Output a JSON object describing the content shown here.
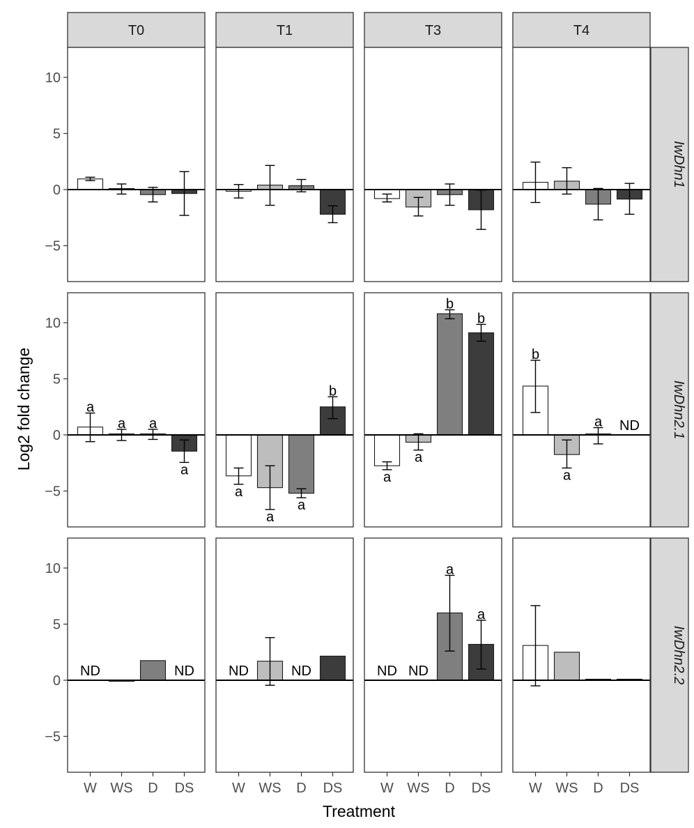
{
  "chart_data": {
    "type": "bar",
    "title": "",
    "xlabel": "Treatment",
    "ylabel": "Log2 fold change",
    "ylim": [
      -8.2,
      12.8
    ],
    "yticks": [
      -5,
      0,
      5,
      10
    ],
    "ytick_labels": [
      "−5",
      "0",
      "5",
      "10"
    ],
    "categories": [
      "W",
      "WS",
      "D",
      "DS"
    ],
    "category_colors": [
      "#ffffff",
      "#bdbdbd",
      "#7f7f7f",
      "#3c3c3c"
    ],
    "columns": [
      "T0",
      "T1",
      "T3",
      "T4"
    ],
    "rows": [
      "IwDhn1",
      "IwDhn2.1",
      "IwDhn2.2"
    ],
    "panels": [
      {
        "row": "IwDhn1",
        "column": "T0",
        "values": [
          0.95,
          0.0,
          -0.45,
          -0.35
        ],
        "errors": [
          [
            0.8,
            1.1
          ],
          [
            -0.4,
            0.5
          ],
          [
            -1.1,
            0.2
          ],
          [
            -2.3,
            1.6
          ]
        ],
        "labels": [
          null,
          null,
          null,
          null
        ]
      },
      {
        "row": "IwDhn1",
        "column": "T1",
        "values": [
          -0.15,
          0.4,
          0.35,
          -2.2
        ],
        "errors": [
          [
            -0.75,
            0.45
          ],
          [
            -1.4,
            2.15
          ],
          [
            -0.2,
            0.9
          ],
          [
            -2.95,
            -1.45
          ]
        ],
        "labels": [
          null,
          null,
          null,
          null
        ]
      },
      {
        "row": "IwDhn1",
        "column": "T3",
        "values": [
          -0.8,
          -1.55,
          -0.45,
          -1.8
        ],
        "errors": [
          [
            -1.1,
            -0.4
          ],
          [
            -2.35,
            -0.7
          ],
          [
            -1.4,
            0.5
          ],
          [
            -3.55,
            -0.05
          ]
        ],
        "labels": [
          null,
          null,
          null,
          null
        ]
      },
      {
        "row": "IwDhn1",
        "column": "T4",
        "values": [
          0.65,
          0.75,
          -1.3,
          -0.85
        ],
        "errors": [
          [
            -1.15,
            2.45
          ],
          [
            -0.4,
            1.95
          ],
          [
            -2.7,
            0.1
          ],
          [
            -2.2,
            0.55
          ]
        ],
        "labels": [
          null,
          null,
          null,
          null
        ]
      },
      {
        "row": "IwDhn2.1",
        "column": "T0",
        "values": [
          0.7,
          0.0,
          0.05,
          -1.45
        ],
        "errors": [
          [
            -0.6,
            1.95
          ],
          [
            -0.5,
            0.5
          ],
          [
            -0.4,
            0.5
          ],
          [
            -2.45,
            -0.45
          ]
        ],
        "labels": [
          "a",
          "a",
          "a",
          "a"
        ]
      },
      {
        "row": "IwDhn2.1",
        "column": "T1",
        "values": [
          -3.65,
          -4.7,
          -5.2,
          2.5
        ],
        "errors": [
          [
            -4.4,
            -2.95
          ],
          [
            -6.65,
            -2.75
          ],
          [
            -5.6,
            -4.8
          ],
          [
            1.45,
            3.4
          ]
        ],
        "labels": [
          "a",
          "a",
          "a",
          "b"
        ]
      },
      {
        "row": "IwDhn2.1",
        "column": "T3",
        "values": [
          -2.75,
          -0.65,
          10.8,
          9.1
        ],
        "errors": [
          [
            -3.1,
            -2.4
          ],
          [
            -1.35,
            0.1
          ],
          [
            10.35,
            11.15
          ],
          [
            8.35,
            9.85
          ]
        ],
        "labels": [
          "a",
          "a",
          "b",
          "b"
        ]
      },
      {
        "row": "IwDhn2.1",
        "column": "T4",
        "values": [
          4.35,
          -1.75,
          0.0,
          null
        ],
        "errors": [
          [
            2.0,
            6.65
          ],
          [
            -2.95,
            -0.45
          ],
          [
            -0.8,
            0.65
          ],
          null
        ],
        "labels": [
          "b",
          "a",
          "a",
          "ND"
        ]
      },
      {
        "row": "IwDhn2.2",
        "column": "T0",
        "values": [
          null,
          -0.05,
          1.75,
          null
        ],
        "errors": [
          null,
          null,
          null,
          null
        ],
        "labels": [
          "ND",
          null,
          null,
          "ND"
        ]
      },
      {
        "row": "IwDhn2.2",
        "column": "T1",
        "values": [
          null,
          1.7,
          null,
          2.15
        ],
        "errors": [
          null,
          [
            -0.45,
            3.8
          ],
          null,
          null
        ],
        "labels": [
          "ND",
          null,
          "ND",
          null
        ]
      },
      {
        "row": "IwDhn2.2",
        "column": "T3",
        "values": [
          null,
          null,
          6.0,
          3.2
        ],
        "errors": [
          null,
          null,
          [
            2.6,
            9.35
          ],
          [
            1.0,
            5.35
          ]
        ],
        "labels": [
          "ND",
          "ND",
          "a",
          "a"
        ]
      },
      {
        "row": "IwDhn2.2",
        "column": "T4",
        "values": [
          3.1,
          2.5,
          0.05,
          0.05
        ],
        "errors": [
          [
            -0.5,
            6.65
          ],
          null,
          null,
          null
        ],
        "labels": [
          null,
          null,
          null,
          null
        ]
      }
    ]
  }
}
